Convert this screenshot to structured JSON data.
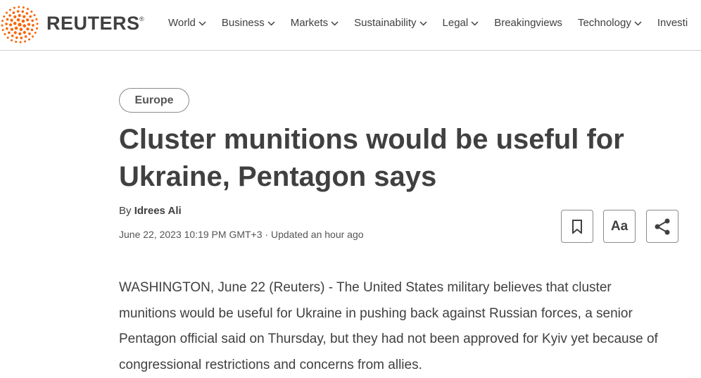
{
  "header": {
    "logo": "REUTERS",
    "registered": "®",
    "nav": [
      {
        "label": "World",
        "dropdown": true
      },
      {
        "label": "Business",
        "dropdown": true
      },
      {
        "label": "Markets",
        "dropdown": true
      },
      {
        "label": "Sustainability",
        "dropdown": true
      },
      {
        "label": "Legal",
        "dropdown": true
      },
      {
        "label": "Breakingviews",
        "dropdown": false
      },
      {
        "label": "Technology",
        "dropdown": true
      },
      {
        "label": "Investi",
        "dropdown": false
      }
    ]
  },
  "article": {
    "tag": "Europe",
    "headline": "Cluster munitions would be useful for Ukraine, Pentagon says",
    "byline_prefix": "By",
    "author": "Idrees Ali",
    "published": "June 22, 2023 10:19 PM GMT+3",
    "separator": "·",
    "updated": "Updated an hour ago",
    "font_button": "Aa",
    "body": "WASHINGTON, June 22 (Reuters) - The United States military believes that cluster munitions would be useful for Ukraine in pushing back against Russian forces, a senior Pentagon official said on Thursday, but they had not been approved for Kyiv yet because of congressional restrictions and concerns from allies."
  }
}
